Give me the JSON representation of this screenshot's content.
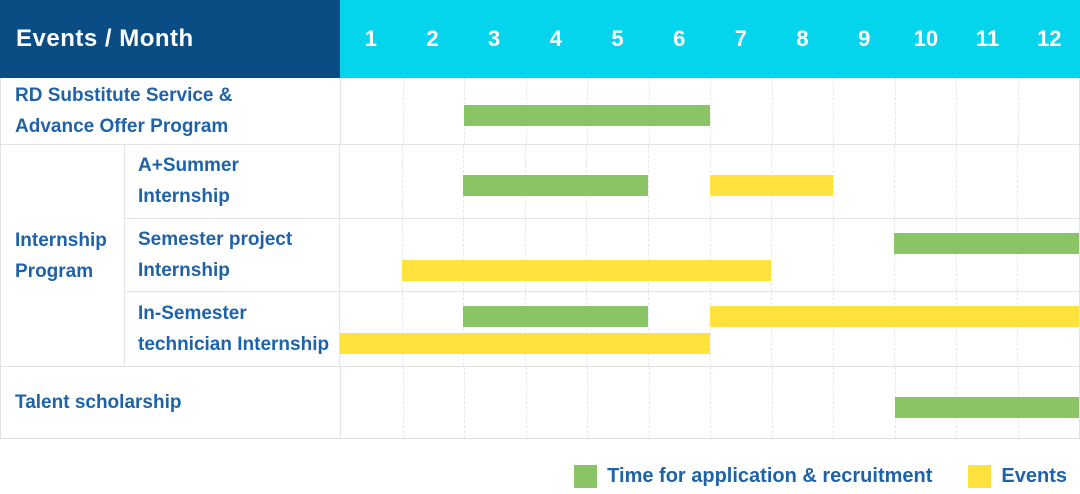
{
  "colors": {
    "header_navy": "#0A4D85",
    "header_cyan": "#05D5EC",
    "bar_green": "#8BC464",
    "bar_yellow": "#FFE23C",
    "label_blue": "#1E63A9",
    "grid_line": "#E7E7E7",
    "row_border": "#E3E3E3"
  },
  "table": {
    "corner_label": "Events / Month",
    "months": [
      "1",
      "2",
      "3",
      "4",
      "5",
      "6",
      "7",
      "8",
      "9",
      "10",
      "11",
      "12"
    ],
    "rows": [
      {
        "type": "simple",
        "label_lines": [
          "RD Substitute Service &",
          "Advance Offer Program"
        ]
      },
      {
        "type": "group",
        "label_lines": [
          "Internship",
          "Program"
        ],
        "children": [
          {
            "label_lines": [
              "A+Summer",
              "Internship"
            ]
          },
          {
            "label_lines": [
              "Semester project",
              "Internship"
            ]
          },
          {
            "label_lines": [
              "In-Semester",
              "technician Internship"
            ]
          }
        ]
      },
      {
        "type": "simple",
        "label_lines": [
          "Talent scholarship"
        ]
      }
    ]
  },
  "chart_data": {
    "type": "bar",
    "subtype": "gantt-schedule",
    "title": "",
    "x_axis": {
      "label": "Month",
      "categories": [
        "1",
        "2",
        "3",
        "4",
        "5",
        "6",
        "7",
        "8",
        "9",
        "10",
        "11",
        "12"
      ],
      "range": [
        1,
        12
      ]
    },
    "grid": "dashed-vertical-month-lines",
    "legend_position": "bottom-right",
    "legend": [
      {
        "color_key": "bar_green",
        "label": "Time for application & recruitment"
      },
      {
        "color_key": "bar_yellow",
        "label": "Events"
      }
    ],
    "rows": [
      {
        "label": "RD Substitute Service & Advance Offer Program",
        "group": null,
        "bars": [
          {
            "color": "green",
            "series": "Time for application & recruitment",
            "start_month": 3,
            "end_month": 6,
            "track": "center"
          }
        ]
      },
      {
        "label": "A+Summer Internship",
        "group": "Internship Program",
        "bars": [
          {
            "color": "green",
            "series": "Time for application & recruitment",
            "start_month": 3,
            "end_month": 5,
            "track": "center"
          },
          {
            "color": "yellow",
            "series": "Events",
            "start_month": 7,
            "end_month": 8,
            "track": "center"
          }
        ]
      },
      {
        "label": "Semester project Internship",
        "group": "Internship Program",
        "bars": [
          {
            "color": "green",
            "series": "Time for application & recruitment",
            "start_month": 10,
            "end_month": 12,
            "track": "upper"
          },
          {
            "color": "yellow",
            "series": "Events",
            "start_month": 2,
            "end_month": 7,
            "track": "lower"
          }
        ]
      },
      {
        "label": "In-Semester technician Internship",
        "group": "Internship Program",
        "bars": [
          {
            "color": "green",
            "series": "Time for application & recruitment",
            "start_month": 3,
            "end_month": 5,
            "track": "upper"
          },
          {
            "color": "yellow",
            "series": "Events",
            "start_month": 7,
            "end_month": 12,
            "track": "upper"
          },
          {
            "color": "yellow",
            "series": "Events",
            "start_month": 1,
            "end_month": 6,
            "track": "lower"
          }
        ]
      },
      {
        "label": "Talent scholarship",
        "group": null,
        "bars": [
          {
            "color": "green",
            "series": "Time for application & recruitment",
            "start_month": 10,
            "end_month": 12,
            "track": "center"
          }
        ]
      }
    ]
  }
}
